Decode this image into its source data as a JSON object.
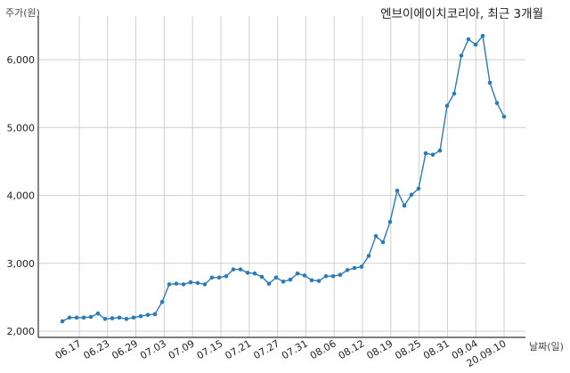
{
  "chart_data": {
    "type": "line",
    "title": "엔브이에이치코리아, 최근 3개월",
    "ylabel": "주가(원)",
    "xlabel": "날짜(일)",
    "ylim": [
      2000,
      6600
    ],
    "yticks": [
      2000,
      3000,
      4000,
      5000,
      6000
    ],
    "ytick_labels": [
      "2,000",
      "3,000",
      "4,000",
      "5,000",
      "6,000"
    ],
    "xtick_labels": [
      "06.17",
      "06.23",
      "06.29",
      "07.03",
      "07.09",
      "07.15",
      "07.21",
      "07.27",
      "07.31",
      "08.06",
      "08.12",
      "08.19",
      "08.25",
      "08.31",
      "09.04",
      "20.09.10"
    ],
    "grid": true,
    "line_color": "#2b7bb9",
    "series": [
      {
        "values": [
          2145,
          2200,
          2200,
          2200,
          2210,
          2260,
          2180,
          2190,
          2200,
          2180,
          2200,
          2220,
          2240,
          2250,
          2430,
          2690,
          2700,
          2690,
          2720,
          2710,
          2690,
          2790,
          2790,
          2810,
          2910,
          2910,
          2860,
          2850,
          2800,
          2700,
          2790,
          2730,
          2760,
          2850,
          2820,
          2750,
          2740,
          2810,
          2810,
          2830,
          2900,
          2930,
          2950,
          3110,
          3400,
          3310,
          3610,
          4070,
          3850,
          4010,
          4100,
          4620,
          4600,
          4660,
          5320,
          5500,
          6060,
          6300,
          6220,
          6350,
          5660,
          5360,
          5160
        ]
      }
    ]
  }
}
